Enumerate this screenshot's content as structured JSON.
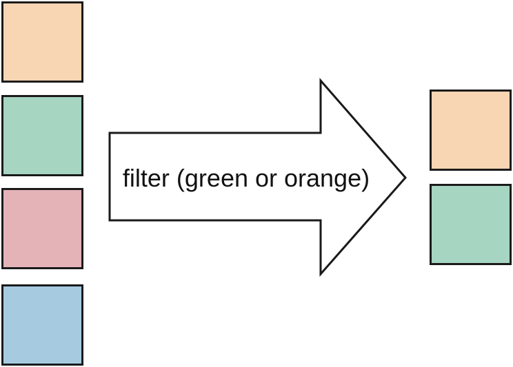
{
  "diagram": {
    "operation_label": "filter (green or orange)"
  },
  "input_items": [
    {
      "name": "orange",
      "color": "#f9d6b3"
    },
    {
      "name": "green",
      "color": "#a6d5c2"
    },
    {
      "name": "red",
      "color": "#e4b3b8"
    },
    {
      "name": "blue",
      "color": "#a6cbe1"
    }
  ],
  "output_items": [
    {
      "name": "orange",
      "color": "#f9d6b3"
    },
    {
      "name": "green",
      "color": "#a6d5c2"
    }
  ],
  "colors": {
    "stroke": "#1a1a1a",
    "arrow_fill": "#ffffff"
  }
}
